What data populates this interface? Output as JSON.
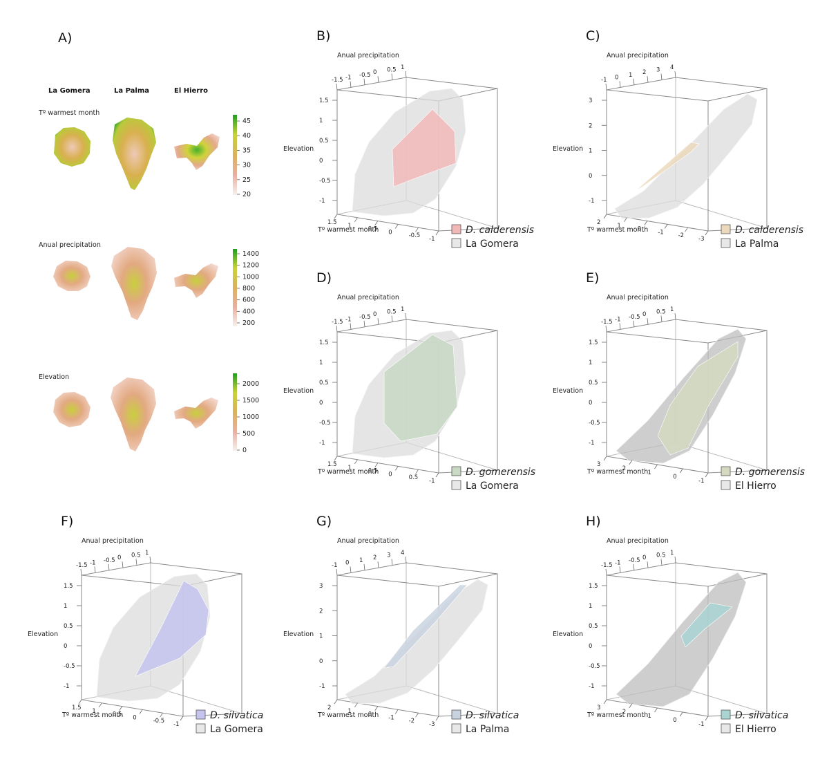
{
  "panel_a": {
    "label": "A)",
    "islands": [
      "La Gomera",
      "La Palma",
      "El Hierro"
    ],
    "variables": [
      {
        "name": "Tº warmest month",
        "colorbar_ticks": [
          "45",
          "40",
          "35",
          "30",
          "25",
          "20"
        ]
      },
      {
        "name": "Anual precipitation",
        "colorbar_ticks": [
          "1400",
          "1200",
          "1000",
          "800",
          "600",
          "400",
          "200"
        ]
      },
      {
        "name": "Elevation",
        "colorbar_ticks": [
          "2000",
          "1500",
          "1000",
          "500",
          "0"
        ]
      }
    ]
  },
  "chart_data": [
    {
      "type": "3d-hull",
      "panel": "B)",
      "axes": {
        "x": "Tº warmest month",
        "y": "Anual precipitation",
        "z": "Elevation"
      },
      "x_ticks": [
        "1.5",
        "1",
        "0.5",
        "0",
        "-0.5",
        "-1"
      ],
      "y_ticks": [
        "-1.5",
        "-1",
        "-0.5",
        "0",
        "0.5",
        "1"
      ],
      "z_ticks": [
        "1.5",
        "1",
        "0.5",
        "0",
        "-0.5",
        "-1"
      ],
      "legend": [
        {
          "label": "D. calderensis",
          "italic": true,
          "color": "#f2b8b8"
        },
        {
          "label": "La Gomera",
          "italic": false,
          "color": "#e8e8e8"
        }
      ]
    },
    {
      "type": "3d-hull",
      "panel": "C)",
      "axes": {
        "x": "Tº warmest month",
        "y": "Anual precipitation",
        "z": "Elevation"
      },
      "x_ticks": [
        "2",
        "1",
        "0",
        "-1",
        "-2",
        "-3"
      ],
      "y_ticks": [
        "-1",
        "0",
        "1",
        "2",
        "3",
        "4"
      ],
      "z_ticks": [
        "3",
        "2",
        "1",
        "0",
        "-1"
      ],
      "legend": [
        {
          "label": "D. calderensis",
          "italic": true,
          "color": "#ecd9bd"
        },
        {
          "label": "La Palma",
          "italic": false,
          "color": "#e8e8e8"
        }
      ]
    },
    {
      "type": "3d-hull",
      "panel": "D)",
      "axes": {
        "x": "Tº warmest month",
        "y": "Anual precipitation",
        "z": "Elevation"
      },
      "x_ticks": [
        "1.5",
        "1",
        "0.5",
        "0",
        "0.5",
        "-1"
      ],
      "y_ticks": [
        "-1.5",
        "-1",
        "-0.5",
        "0",
        "0.5",
        "1"
      ],
      "z_ticks": [
        "1.5",
        "1",
        "0.5",
        "0",
        "-0.5",
        "-1"
      ],
      "legend": [
        {
          "label": "D. gomerensis",
          "italic": true,
          "color": "#c8d9c4"
        },
        {
          "label": "La Gomera",
          "italic": false,
          "color": "#e8e8e8"
        }
      ]
    },
    {
      "type": "3d-hull",
      "panel": "E)",
      "axes": {
        "x": "Tº warmest month",
        "y": "Anual precipitation",
        "z": "Elevation"
      },
      "x_ticks": [
        "3",
        "2",
        "1",
        "0",
        "-1"
      ],
      "y_ticks": [
        "-1.5",
        "-1",
        "-0.5",
        "0",
        "0.5",
        "1"
      ],
      "z_ticks": [
        "1.5",
        "1",
        "0.5",
        "0",
        "-0.5",
        "-1"
      ],
      "legend": [
        {
          "label": "D. gomerensis",
          "italic": true,
          "color": "#d4d9c0"
        },
        {
          "label": "El Hierro",
          "italic": false,
          "color": "#e8e8e8"
        }
      ]
    },
    {
      "type": "3d-hull",
      "panel": "F)",
      "axes": {
        "x": "Tº warmest month",
        "y": "Anual precipitation",
        "z": "Elevation"
      },
      "x_ticks": [
        "1.5",
        "1",
        "0.5",
        "0",
        "-0.5",
        "-1"
      ],
      "y_ticks": [
        "-1.5",
        "-1",
        "-0.5",
        "0",
        "0.5",
        "1"
      ],
      "z_ticks": [
        "1.5",
        "1",
        "0.5",
        "0",
        "-0.5",
        "-1"
      ],
      "legend": [
        {
          "label": "D. silvatica",
          "italic": true,
          "color": "#c4c4ef"
        },
        {
          "label": "La Gomera",
          "italic": false,
          "color": "#e8e8e8"
        }
      ]
    },
    {
      "type": "3d-hull",
      "panel": "G)",
      "axes": {
        "x": "Tº warmest month",
        "y": "Anual precipitation",
        "z": "Elevation"
      },
      "x_ticks": [
        "2",
        "1",
        "0",
        "-1",
        "-2",
        "-3"
      ],
      "y_ticks": [
        "-1",
        "0",
        "1",
        "2",
        "3",
        "4"
      ],
      "z_ticks": [
        "3",
        "2",
        "1",
        "0",
        "-1"
      ],
      "legend": [
        {
          "label": "D. silvatica",
          "italic": true,
          "color": "#c9d3e0"
        },
        {
          "label": "La Palma",
          "italic": false,
          "color": "#e8e8e8"
        }
      ]
    },
    {
      "type": "3d-hull",
      "panel": "H)",
      "axes": {
        "x": "Tº warmest month",
        "y": "Anual precipitation",
        "z": "Elevation"
      },
      "x_ticks": [
        "3",
        "2",
        "1",
        "0",
        "-1"
      ],
      "y_ticks": [
        "-1.5",
        "-1",
        "-0.5",
        "0",
        "0.5",
        "1"
      ],
      "z_ticks": [
        "1.5",
        "1",
        "0.5",
        "0",
        "-0.5",
        "-1"
      ],
      "legend": [
        {
          "label": "D. silvatica",
          "italic": true,
          "color": "#a9d4d2"
        },
        {
          "label": "El Hierro",
          "italic": false,
          "color": "#e8e8e8"
        }
      ]
    }
  ]
}
